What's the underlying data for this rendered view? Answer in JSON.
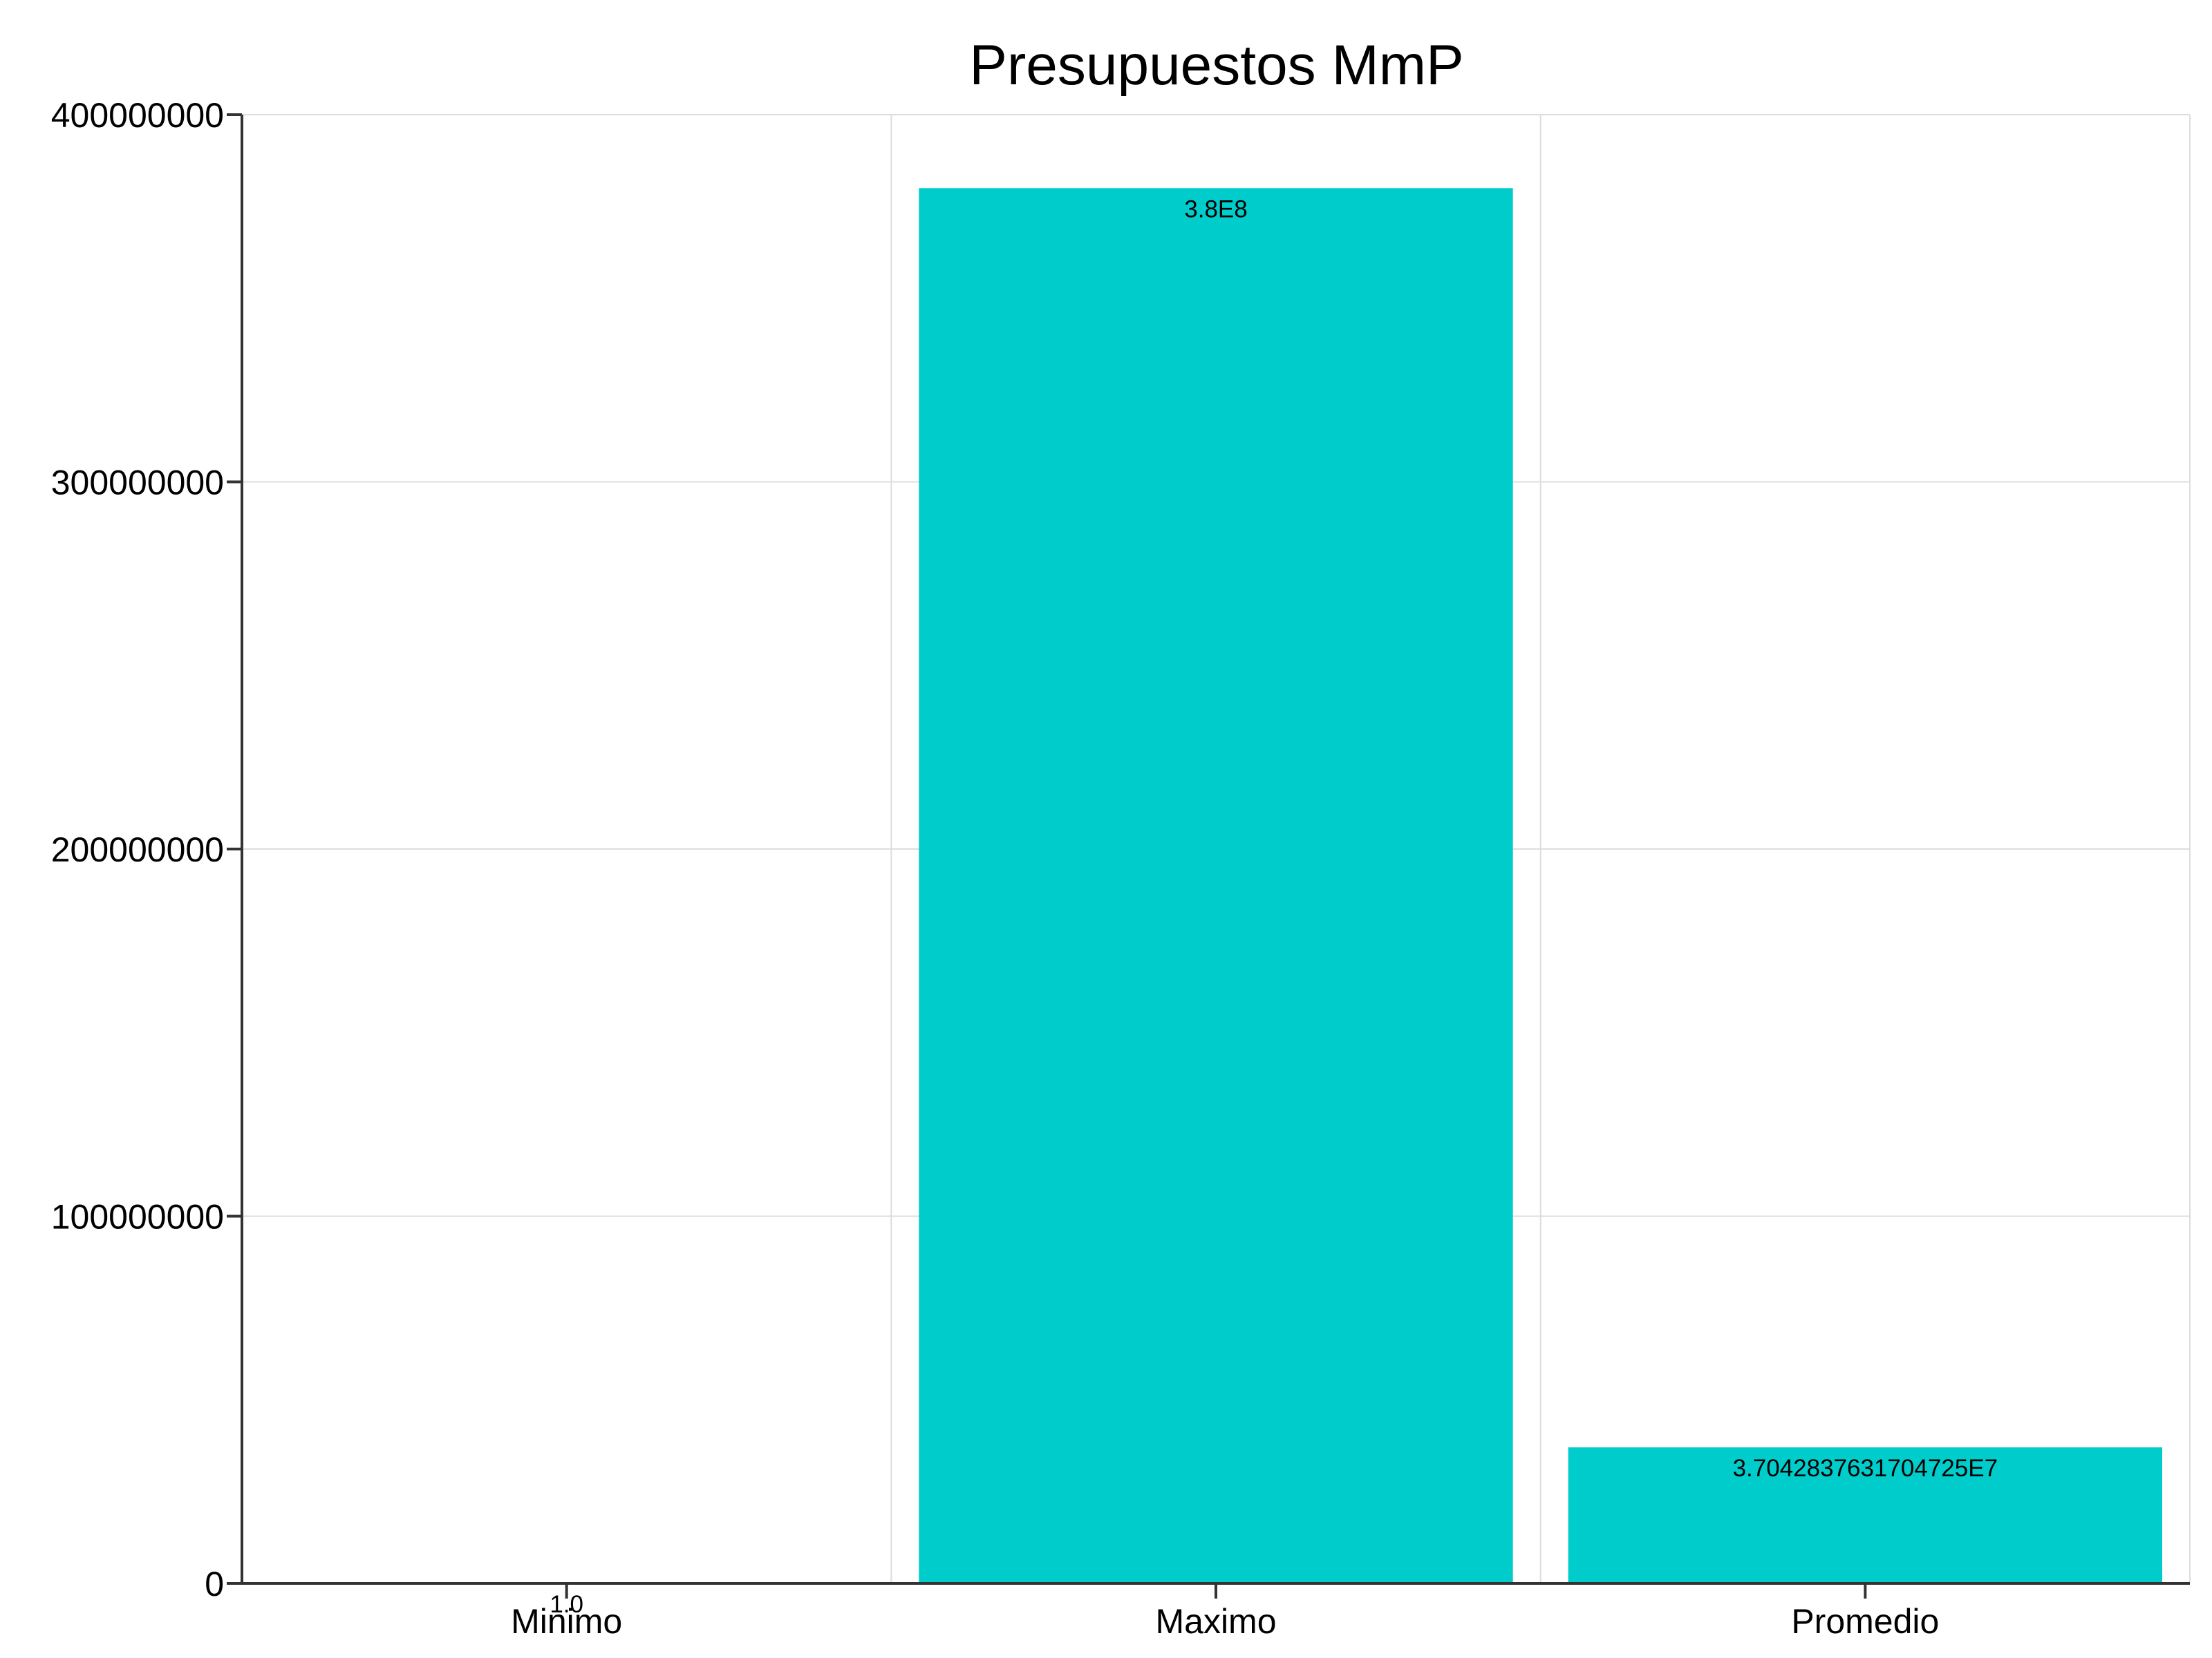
{
  "chart_data": {
    "type": "bar",
    "title": "Presupuestos MmP",
    "xlabel": "",
    "ylabel": "",
    "categories": [
      "Minimo",
      "Maximo",
      "Promedio"
    ],
    "values": [
      1.0,
      380000000,
      37042837.631704725
    ],
    "data_labels": [
      "1.0",
      "3.8E8",
      "3.7042837631704725E7"
    ],
    "ylim": [
      0,
      400000000
    ],
    "yticks": [
      0,
      100000000,
      200000000,
      300000000,
      400000000
    ],
    "ytick_labels": [
      "0",
      "100000000",
      "200000000",
      "300000000",
      "400000000"
    ],
    "grid": true,
    "legend": "none",
    "colors": {
      "bar": "#00CCCC",
      "grid": "#DDDDDD",
      "axis": "#333333"
    }
  }
}
